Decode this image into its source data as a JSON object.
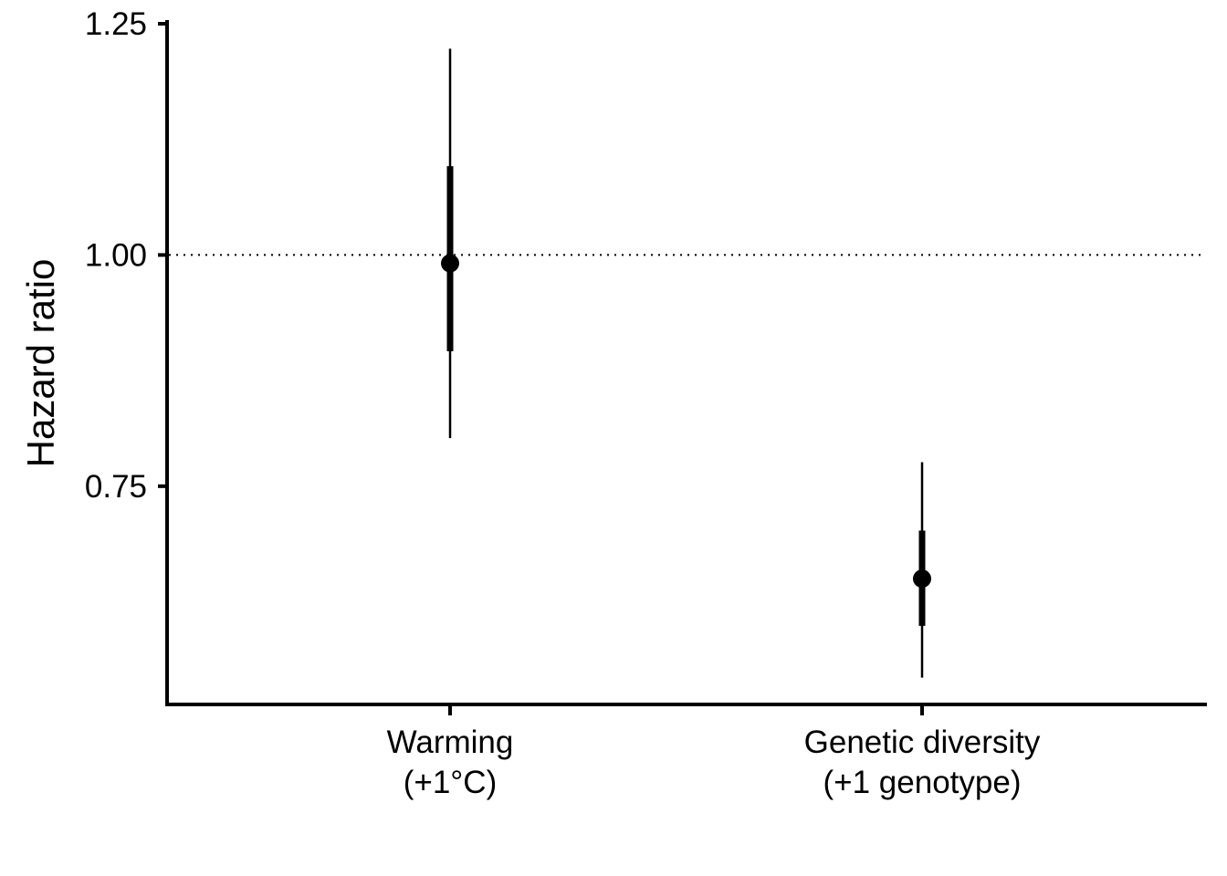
{
  "chart_data": {
    "type": "pointrange",
    "title": "",
    "xlabel": "",
    "ylabel": "Hazard ratio",
    "ylim": [
      0.514,
      1.254
    ],
    "y_ticks": [
      {
        "value": 0.75,
        "label": "0.75"
      },
      {
        "value": 1.0,
        "label": "1.00"
      },
      {
        "value": 1.25,
        "label": "1.25"
      }
    ],
    "reference_line": {
      "y": 1.0,
      "style": "dotted"
    },
    "categories": [
      {
        "lines": [
          "Warming",
          "(+1°C)"
        ]
      },
      {
        "lines": [
          "Genetic diversity",
          "(+1 genotype)"
        ]
      }
    ],
    "points": [
      {
        "estimate": 0.991,
        "inner_low": 0.896,
        "inner_high": 1.096,
        "outer_low": 0.802,
        "outer_high": 1.223
      },
      {
        "estimate": 0.65,
        "inner_low": 0.599,
        "inner_high": 0.702,
        "outer_low": 0.543,
        "outer_high": 0.776
      }
    ],
    "grid": false,
    "legend": "none",
    "colors": {
      "ink": "#000000",
      "background": "#ffffff"
    }
  }
}
